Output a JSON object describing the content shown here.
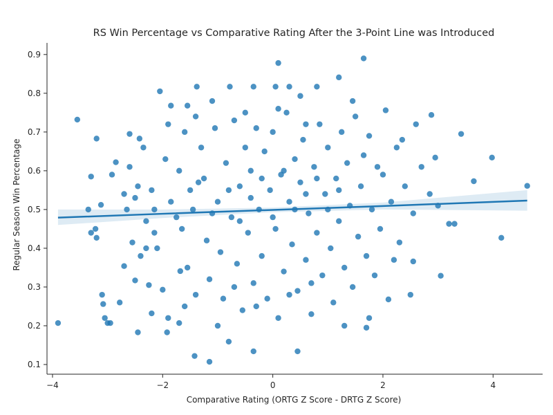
{
  "chart_data": {
    "type": "scatter",
    "title": "RS Win Percentage vs Comparative Rating After the 3-Point Line was Introduced",
    "xlabel": "Comparative Rating (ORTG Z Score - DRTG Z Score)",
    "ylabel": "Regular Season Win Percentage",
    "xlim": [
      -4.1,
      4.9
    ],
    "ylim": [
      0.075,
      0.93
    ],
    "xticks": [
      -4,
      -2,
      0,
      2,
      4
    ],
    "yticks": [
      0.1,
      0.2,
      0.3,
      0.4,
      0.5,
      0.6,
      0.7,
      0.8,
      0.9
    ],
    "xtick_labels": [
      "−4",
      "−2",
      "0",
      "2",
      "4"
    ],
    "ytick_labels": [
      "0.1",
      "0.2",
      "0.3",
      "0.4",
      "0.5",
      "0.6",
      "0.7",
      "0.8",
      "0.9"
    ],
    "grid": false,
    "colors": {
      "points": "#1f77b4",
      "line": "#1f77b4",
      "band": "#1f77b4"
    },
    "series": [
      {
        "values": [
          [
            -3.9,
            0.207
          ],
          [
            -3.55,
            0.732
          ],
          [
            -3.35,
            0.5
          ],
          [
            -3.3,
            0.44
          ],
          [
            -3.3,
            0.585
          ],
          [
            -3.22,
            0.45
          ],
          [
            -3.2,
            0.683
          ],
          [
            -3.2,
            0.427
          ],
          [
            -3.12,
            0.512
          ],
          [
            -3.1,
            0.28
          ],
          [
            -3.08,
            0.256
          ],
          [
            -3.05,
            0.22
          ],
          [
            -3.0,
            0.207
          ],
          [
            -2.95,
            0.207
          ],
          [
            -2.92,
            0.59
          ],
          [
            -2.85,
            0.622
          ],
          [
            -2.78,
            0.26
          ],
          [
            -2.7,
            0.354
          ],
          [
            -2.65,
            0.5
          ],
          [
            -2.6,
            0.695
          ],
          [
            -2.55,
            0.415
          ],
          [
            -2.5,
            0.317
          ],
          [
            -2.45,
            0.183
          ],
          [
            -2.42,
            0.683
          ],
          [
            -2.3,
            0.4
          ],
          [
            -2.25,
            0.305
          ],
          [
            -2.2,
            0.232
          ],
          [
            -2.15,
            0.5
          ],
          [
            -2.05,
            0.805
          ],
          [
            -2.0,
            0.293
          ],
          [
            -1.92,
            0.183
          ],
          [
            -1.9,
            0.22
          ],
          [
            -1.85,
            0.768
          ],
          [
            -1.7,
            0.207
          ],
          [
            -1.68,
            0.341
          ],
          [
            -1.55,
            0.768
          ],
          [
            -1.42,
            0.122
          ],
          [
            -1.38,
            0.817
          ],
          [
            -1.15,
            0.107
          ],
          [
            -1.1,
            0.78
          ],
          [
            -0.8,
            0.159
          ],
          [
            -0.78,
            0.817
          ],
          [
            -0.35,
            0.817
          ],
          [
            -0.35,
            0.134
          ],
          [
            0.05,
            0.817
          ],
          [
            0.1,
            0.878
          ],
          [
            0.3,
            0.817
          ],
          [
            0.45,
            0.134
          ],
          [
            0.5,
            0.793
          ],
          [
            0.8,
            0.817
          ],
          [
            1.2,
            0.841
          ],
          [
            1.45,
            0.78
          ],
          [
            1.65,
            0.89
          ],
          [
            1.7,
            0.195
          ],
          [
            1.75,
            0.22
          ],
          [
            2.05,
            0.756
          ],
          [
            2.1,
            0.268
          ],
          [
            2.3,
            0.415
          ],
          [
            2.5,
            0.28
          ],
          [
            2.55,
            0.366
          ],
          [
            2.6,
            0.72
          ],
          [
            2.88,
            0.744
          ],
          [
            2.95,
            0.634
          ],
          [
            3.05,
            0.329
          ],
          [
            3.2,
            0.463
          ],
          [
            3.3,
            0.463
          ],
          [
            3.42,
            0.695
          ],
          [
            3.65,
            0.573
          ],
          [
            3.98,
            0.634
          ],
          [
            4.15,
            0.427
          ],
          [
            4.62,
            0.561
          ],
          [
            -2.35,
            0.66
          ],
          [
            -2.6,
            0.61
          ],
          [
            -2.2,
            0.55
          ],
          [
            -2.5,
            0.53
          ],
          [
            -2.15,
            0.44
          ],
          [
            -2.4,
            0.38
          ],
          [
            -1.95,
            0.63
          ],
          [
            -2.3,
            0.47
          ],
          [
            -2.45,
            0.56
          ],
          [
            -1.6,
            0.7
          ],
          [
            -1.4,
            0.74
          ],
          [
            -1.7,
            0.6
          ],
          [
            -1.5,
            0.55
          ],
          [
            -1.65,
            0.45
          ],
          [
            -1.55,
            0.35
          ],
          [
            -1.4,
            0.28
          ],
          [
            -1.6,
            0.25
          ],
          [
            -1.3,
            0.66
          ],
          [
            -1.25,
            0.58
          ],
          [
            -1.2,
            0.42
          ],
          [
            -1.15,
            0.32
          ],
          [
            -1.05,
            0.71
          ],
          [
            -1.0,
            0.52
          ],
          [
            -0.95,
            0.39
          ],
          [
            -0.9,
            0.27
          ],
          [
            -0.85,
            0.62
          ],
          [
            -0.75,
            0.48
          ],
          [
            -0.7,
            0.73
          ],
          [
            -0.65,
            0.36
          ],
          [
            -0.6,
            0.56
          ],
          [
            -0.55,
            0.24
          ],
          [
            -0.5,
            0.66
          ],
          [
            -0.45,
            0.44
          ],
          [
            -0.4,
            0.6
          ],
          [
            -0.35,
            0.31
          ],
          [
            -0.3,
            0.71
          ],
          [
            -0.25,
            0.5
          ],
          [
            -0.2,
            0.38
          ],
          [
            -0.15,
            0.65
          ],
          [
            -0.1,
            0.27
          ],
          [
            -0.05,
            0.55
          ],
          [
            0.0,
            0.7
          ],
          [
            0.05,
            0.45
          ],
          [
            0.1,
            0.22
          ],
          [
            0.15,
            0.59
          ],
          [
            0.2,
            0.34
          ],
          [
            0.25,
            0.75
          ],
          [
            0.3,
            0.52
          ],
          [
            0.35,
            0.41
          ],
          [
            0.4,
            0.63
          ],
          [
            0.45,
            0.29
          ],
          [
            0.5,
            0.57
          ],
          [
            0.55,
            0.68
          ],
          [
            0.6,
            0.37
          ],
          [
            0.65,
            0.49
          ],
          [
            0.7,
            0.23
          ],
          [
            0.75,
            0.61
          ],
          [
            0.8,
            0.44
          ],
          [
            0.85,
            0.72
          ],
          [
            0.9,
            0.33
          ],
          [
            0.95,
            0.54
          ],
          [
            1.0,
            0.66
          ],
          [
            1.05,
            0.4
          ],
          [
            1.1,
            0.26
          ],
          [
            1.15,
            0.58
          ],
          [
            1.2,
            0.47
          ],
          [
            1.25,
            0.7
          ],
          [
            1.3,
            0.35
          ],
          [
            1.35,
            0.62
          ],
          [
            1.4,
            0.51
          ],
          [
            1.45,
            0.3
          ],
          [
            1.5,
            0.74
          ],
          [
            1.55,
            0.43
          ],
          [
            1.6,
            0.56
          ],
          [
            1.65,
            0.64
          ],
          [
            1.7,
            0.38
          ],
          [
            1.75,
            0.69
          ],
          [
            1.8,
            0.5
          ],
          [
            1.85,
            0.33
          ],
          [
            1.9,
            0.61
          ],
          [
            1.95,
            0.45
          ],
          [
            2.0,
            0.59
          ],
          [
            2.15,
            0.52
          ],
          [
            2.25,
            0.66
          ],
          [
            2.4,
            0.56
          ],
          [
            2.55,
            0.49
          ],
          [
            2.7,
            0.61
          ],
          [
            2.85,
            0.54
          ],
          [
            3.0,
            0.51
          ],
          [
            -1.85,
            0.52
          ],
          [
            -1.75,
            0.48
          ],
          [
            -1.45,
            0.5
          ],
          [
            -1.35,
            0.57
          ],
          [
            -1.1,
            0.49
          ],
          [
            -0.8,
            0.55
          ],
          [
            -0.6,
            0.47
          ],
          [
            -0.4,
            0.53
          ],
          [
            -0.2,
            0.58
          ],
          [
            0.0,
            0.48
          ],
          [
            0.2,
            0.6
          ],
          [
            0.4,
            0.5
          ],
          [
            0.6,
            0.54
          ],
          [
            0.8,
            0.58
          ],
          [
            1.0,
            0.5
          ],
          [
            1.2,
            0.55
          ],
          [
            -0.7,
            0.3
          ],
          [
            -0.3,
            0.25
          ],
          [
            0.3,
            0.28
          ],
          [
            0.7,
            0.31
          ],
          [
            -0.5,
            0.75
          ],
          [
            0.1,
            0.76
          ],
          [
            0.6,
            0.72
          ],
          [
            -1.0,
            0.2
          ],
          [
            1.3,
            0.2
          ],
          [
            -1.9,
            0.72
          ],
          [
            -2.1,
            0.4
          ],
          [
            2.2,
            0.37
          ],
          [
            2.35,
            0.68
          ],
          [
            -2.7,
            0.54
          ]
        ]
      }
    ],
    "regression": {
      "x": [
        -3.9,
        -2.0,
        0.0,
        2.0,
        4.62
      ],
      "y": [
        0.479,
        0.489,
        0.499,
        0.509,
        0.523
      ],
      "ci_lower": [
        0.46,
        0.478,
        0.493,
        0.5,
        0.497
      ],
      "ci_upper": [
        0.5,
        0.5,
        0.505,
        0.518,
        0.55
      ]
    }
  }
}
